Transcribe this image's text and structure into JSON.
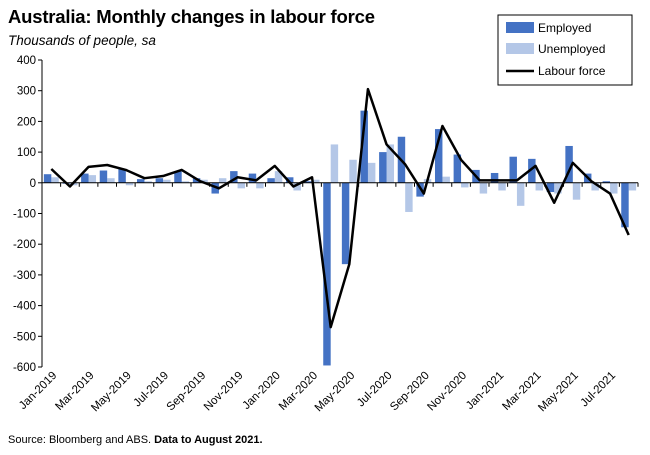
{
  "chart_data": {
    "type": "bar",
    "title": "Australia: Monthly changes in labour force",
    "subtitle": "Thousands of people, sa",
    "source_prefix": "Source: Bloomberg and ABS.",
    "source_bold": "Data to August 2021.",
    "ylim": [
      -600,
      400
    ],
    "yticks": [
      400,
      300,
      200,
      100,
      0,
      -100,
      -200,
      -300,
      -400,
      -500,
      -600
    ],
    "grid": false,
    "legend_position": "top-right",
    "colors": {
      "employed": "#4472C4",
      "unemployed": "#B4C7E7",
      "labour_force": "#000000"
    },
    "categories": [
      "Jan-2019",
      "Feb-2019",
      "Mar-2019",
      "Apr-2019",
      "May-2019",
      "Jun-2019",
      "Jul-2019",
      "Aug-2019",
      "Sep-2019",
      "Oct-2019",
      "Nov-2019",
      "Dec-2019",
      "Jan-2020",
      "Feb-2020",
      "Mar-2020",
      "Apr-2020",
      "May-2020",
      "Jun-2020",
      "Jul-2020",
      "Aug-2020",
      "Sep-2020",
      "Oct-2020",
      "Nov-2020",
      "Dec-2020",
      "Jan-2021",
      "Feb-2021",
      "Mar-2021",
      "Apr-2021",
      "May-2021",
      "Jun-2021",
      "Jul-2021",
      "Aug-2021"
    ],
    "tick_labels": [
      "Jan-2019",
      "Mar-2019",
      "May-2019",
      "Jul-2019",
      "Sep-2019",
      "Nov-2019",
      "Jan-2020",
      "Mar-2020",
      "May-2020",
      "Jul-2020",
      "Sep-2020",
      "Nov-2020",
      "Jan-2021",
      "Mar-2021",
      "May-2021",
      "Jul-2021"
    ],
    "series": [
      {
        "name": "Employed",
        "kind": "bar",
        "values": [
          28,
          -3,
          30,
          40,
          45,
          12,
          15,
          38,
          15,
          -35,
          38,
          30,
          15,
          18,
          5,
          -595,
          -265,
          235,
          100,
          150,
          -45,
          175,
          92,
          42,
          32,
          85,
          78,
          -30,
          120,
          30,
          5,
          -145
        ]
      },
      {
        "name": "Unemployed",
        "kind": "bar",
        "values": [
          18,
          -8,
          25,
          15,
          -8,
          5,
          10,
          5,
          10,
          15,
          -18,
          -18,
          38,
          -25,
          10,
          125,
          75,
          65,
          125,
          -95,
          12,
          20,
          -15,
          -35,
          -25,
          -75,
          -25,
          -35,
          -55,
          -25,
          -35,
          -25
        ]
      },
      {
        "name": "Labour force",
        "kind": "line",
        "values": [
          45,
          -12,
          52,
          58,
          42,
          15,
          22,
          42,
          5,
          -18,
          18,
          8,
          55,
          -12,
          18,
          -470,
          -265,
          305,
          125,
          60,
          -35,
          185,
          75,
          8,
          8,
          8,
          55,
          -65,
          65,
          5,
          -35,
          -170
        ]
      }
    ]
  }
}
